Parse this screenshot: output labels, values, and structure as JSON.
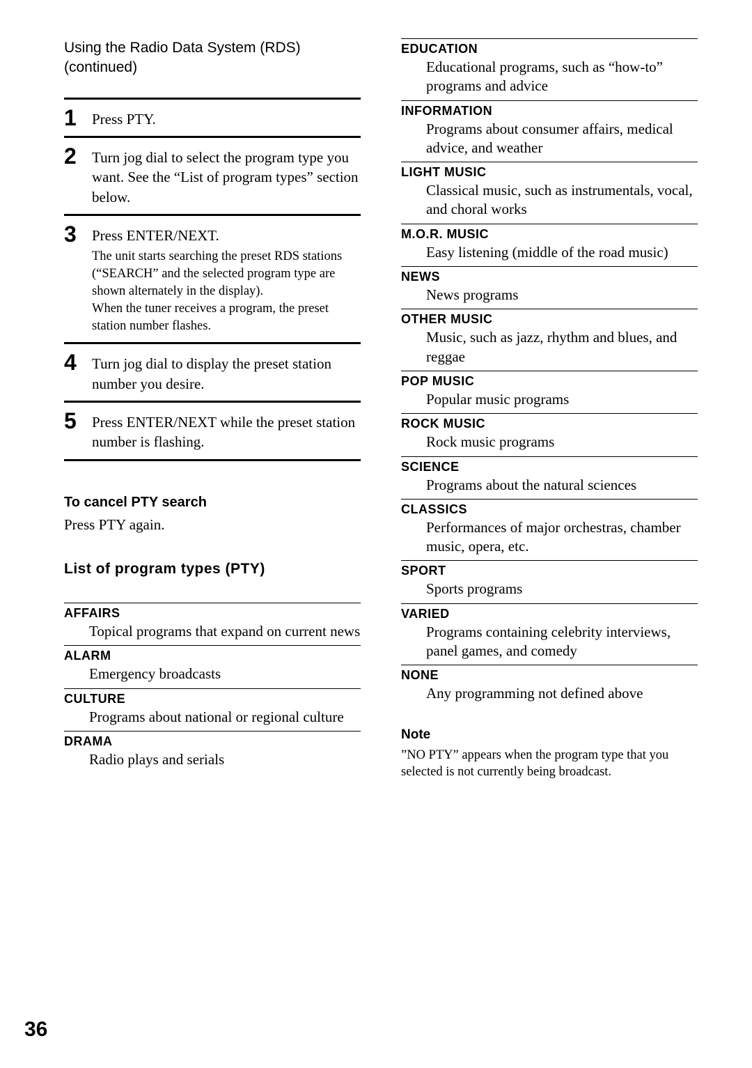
{
  "header": {
    "title": "Using the Radio Data System (RDS) (continued)"
  },
  "steps": [
    {
      "num": "1",
      "main": "Press PTY.",
      "sub": ""
    },
    {
      "num": "2",
      "main": "Turn jog dial to select the program type you want. See the “List of program types” section below.",
      "sub": ""
    },
    {
      "num": "3",
      "main": "Press ENTER/NEXT.",
      "sub": "The unit starts searching the preset RDS stations (“SEARCH” and the selected program type are shown alternately in the display).\nWhen the tuner receives a program, the preset station number flashes."
    },
    {
      "num": "4",
      "main": "Turn jog dial to display the preset station number you desire.",
      "sub": ""
    },
    {
      "num": "5",
      "main": "Press ENTER/NEXT while the preset station number is flashing.",
      "sub": ""
    }
  ],
  "cancel": {
    "heading": "To cancel PTY search",
    "text": "Press PTY again."
  },
  "pty_heading": "List of program types (PTY)",
  "pty_left": [
    {
      "name": "AFFAIRS",
      "desc": "Topical programs that expand on current news"
    },
    {
      "name": "ALARM",
      "desc": "Emergency broadcasts"
    },
    {
      "name": "CULTURE",
      "desc": "Programs about national or regional culture"
    },
    {
      "name": "DRAMA",
      "desc": "Radio plays and serials"
    }
  ],
  "pty_right": [
    {
      "name": "EDUCATION",
      "desc": "Educational programs, such as “how-to” programs and advice"
    },
    {
      "name": "INFORMATION",
      "desc": "Programs about consumer affairs, medical advice, and weather"
    },
    {
      "name": "LIGHT MUSIC",
      "desc": "Classical music, such as instrumentals, vocal, and choral works"
    },
    {
      "name": "M.O.R. MUSIC",
      "desc": "Easy listening (middle of the road music)"
    },
    {
      "name": "NEWS",
      "desc": "News programs"
    },
    {
      "name": "OTHER MUSIC",
      "desc": "Music, such as jazz, rhythm and blues, and reggae"
    },
    {
      "name": "POP MUSIC",
      "desc": "Popular music programs"
    },
    {
      "name": "ROCK MUSIC",
      "desc": "Rock music programs"
    },
    {
      "name": "SCIENCE",
      "desc": "Programs about the natural sciences"
    },
    {
      "name": "CLASSICS",
      "desc": "Performances of major orchestras, chamber music, opera, etc."
    },
    {
      "name": "SPORT",
      "desc": "Sports programs"
    },
    {
      "name": "VARIED",
      "desc": "Programs containing celebrity interviews, panel games, and comedy"
    },
    {
      "name": "NONE",
      "desc": "Any programming not defined above"
    }
  ],
  "note": {
    "heading": "Note",
    "text": "”NO PTY” appears when the program type that you selected is not currently being broadcast."
  },
  "page_number": "36"
}
